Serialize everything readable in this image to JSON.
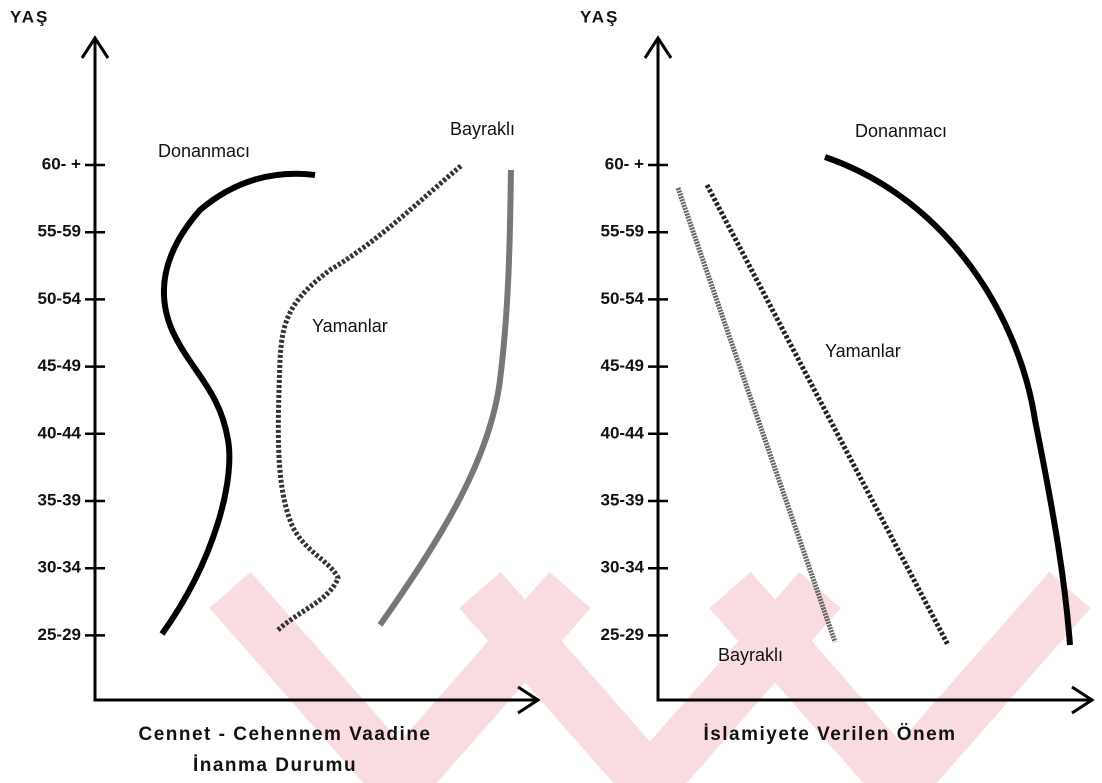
{
  "left": {
    "y_axis_label": "YAŞ",
    "ticks": [
      "60- +",
      "55-59",
      "50-54",
      "45-49",
      "40-44",
      "35-39",
      "30-34",
      "25-29"
    ],
    "curve_labels": {
      "donanmaci": "Donanmacı",
      "bayrakli": "Bayraklı",
      "yamanlar": "Yamanlar"
    },
    "x_axis_title": [
      "Cennet - Cehennem Vaadine",
      "İnanma Durumu"
    ]
  },
  "right": {
    "y_axis_label": "YAŞ",
    "ticks": [
      "60- +",
      "55-59",
      "50-54",
      "45-49",
      "40-44",
      "35-39",
      "30-34",
      "25-29"
    ],
    "curve_labels": {
      "donanmaci": "Donanmacı",
      "yamanlar": "Yamanlar",
      "bayrakli": "Bayraklı"
    },
    "x_axis_title": "İslamiyete Verilen Önem"
  }
}
